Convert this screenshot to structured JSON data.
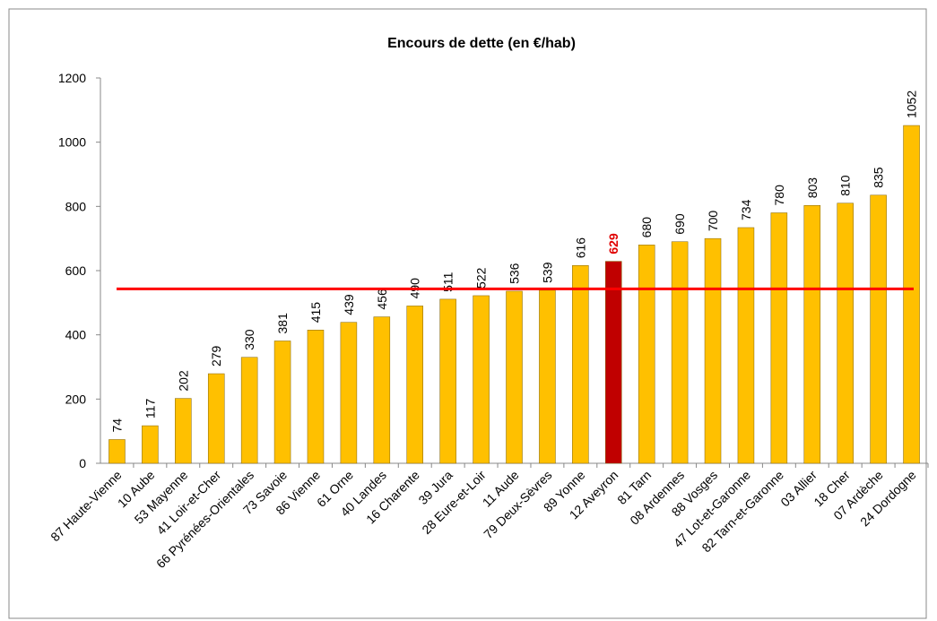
{
  "chart_data": {
    "type": "bar",
    "title": "Encours de dette (en €/hab)",
    "categories": [
      "87 Haute-Vienne",
      "10 Aube",
      "53 Mayenne",
      "41 Loir-et-Cher",
      "66 Pyrénées-Orientales",
      "73 Savoie",
      "86 Vienne",
      "61 Orne",
      "40 Landes",
      "16 Charente",
      "39 Jura",
      "28 Eure-et-Loir",
      "11 Aude",
      "79 Deux-Sèvres",
      "89 Yonne",
      "12 Aveyron",
      "81 Tarn",
      "08 Ardennes",
      "88 Vosges",
      "47 Lot-et-Garonne",
      "82 Tarn-et-Garonne",
      "03 Allier",
      "18 Cher",
      "07 Ardèche",
      "24 Dordogne"
    ],
    "values": [
      74,
      117,
      202,
      279,
      330,
      381,
      415,
      439,
      456,
      490,
      511,
      522,
      536,
      539,
      616,
      629,
      680,
      690,
      700,
      734,
      780,
      803,
      810,
      835,
      1052
    ],
    "colors": [
      "#ffc000",
      "#ffc000",
      "#ffc000",
      "#ffc000",
      "#ffc000",
      "#ffc000",
      "#ffc000",
      "#ffc000",
      "#ffc000",
      "#ffc000",
      "#ffc000",
      "#ffc000",
      "#ffc000",
      "#ffc000",
      "#ffc000",
      "#c00000",
      "#ffc000",
      "#ffc000",
      "#ffc000",
      "#ffc000",
      "#ffc000",
      "#ffc000",
      "#ffc000",
      "#ffc000",
      "#ffc000"
    ],
    "ylim": [
      0,
      1200
    ],
    "yticks": [
      0,
      200,
      400,
      600,
      800,
      1000,
      1200
    ],
    "grid": false,
    "reference_line": {
      "value": 543,
      "color": "#ff0000"
    }
  }
}
